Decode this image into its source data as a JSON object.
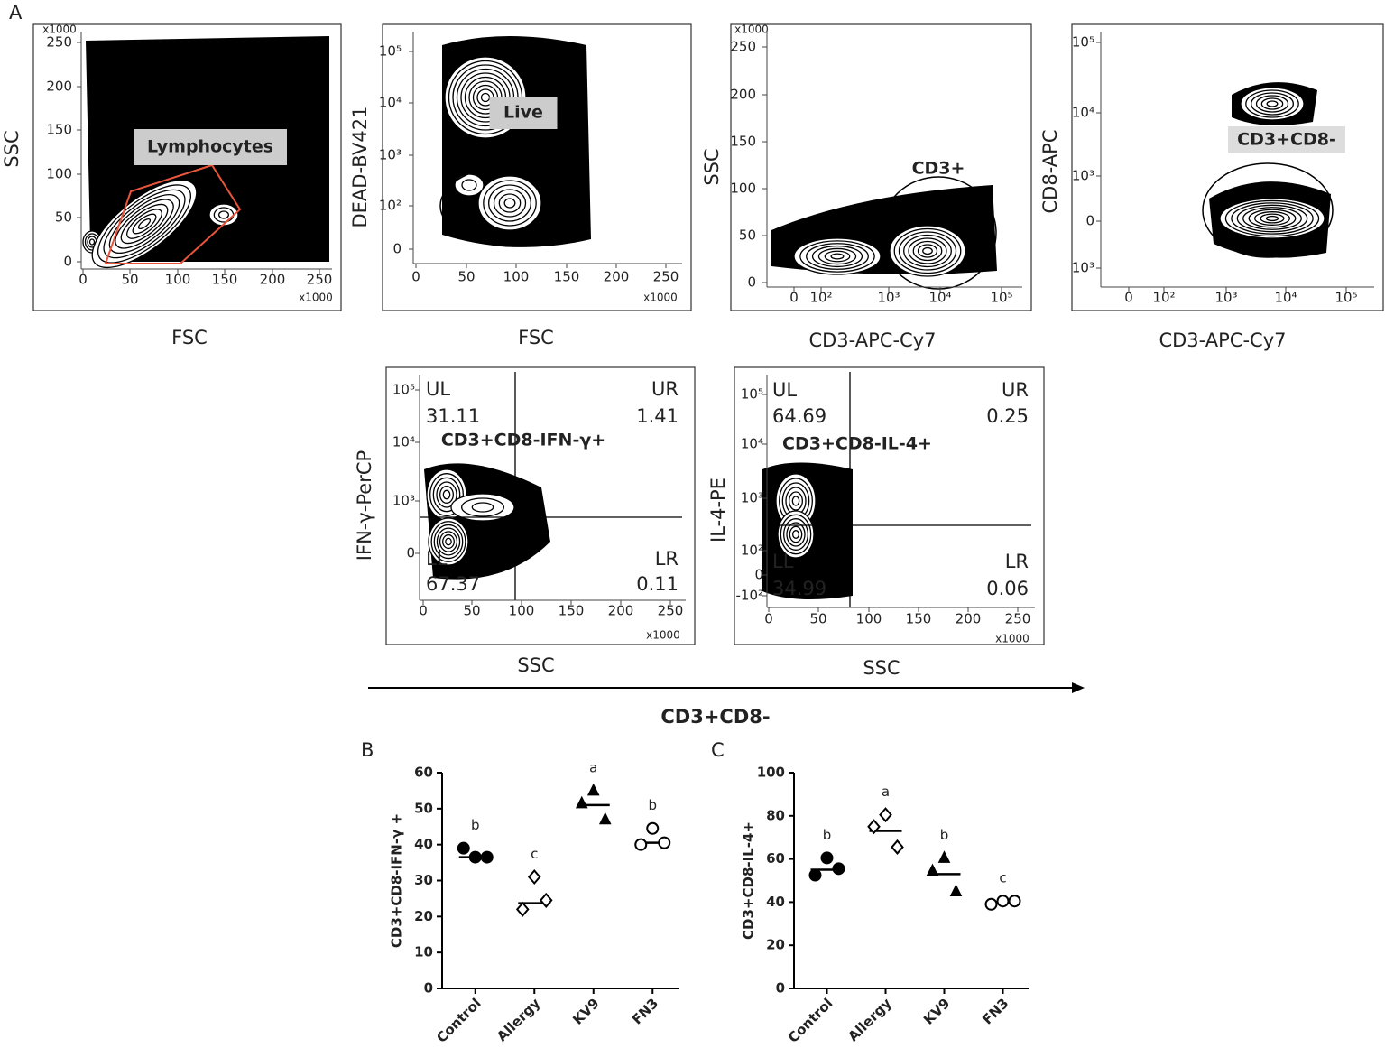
{
  "panel_labels": [
    "A",
    "B",
    "C"
  ],
  "flow_plots": [
    {
      "xlabel": "FSC",
      "ylabel": "SSC",
      "xticks": [
        "0",
        "50",
        "100",
        "150",
        "200",
        "250"
      ],
      "yticks": [
        "0",
        "50",
        "100",
        "150",
        "200",
        "250"
      ],
      "x_multiplier": "x1000",
      "y_multiplier": "x1000",
      "gate": "Lymphocytes"
    },
    {
      "xlabel": "FSC",
      "ylabel": "DEAD-BV421",
      "xticks": [
        "0",
        "50",
        "100",
        "150",
        "200",
        "250"
      ],
      "yticks": [
        "0",
        "10²",
        "10³",
        "10⁴",
        "10⁵"
      ],
      "x_multiplier": "x1000",
      "gate": "Live"
    },
    {
      "xlabel": "CD3-APC-Cy7",
      "ylabel": "SSC",
      "xticks": [
        "0",
        "10²",
        "10³",
        "10⁴",
        "10⁵"
      ],
      "yticks": [
        "0",
        "50",
        "100",
        "150",
        "200",
        "250"
      ],
      "y_multiplier": "x1000",
      "gate": "CD3+"
    },
    {
      "xlabel": "CD3-APC-Cy7",
      "ylabel": "CD8-APC",
      "xticks": [
        "0",
        "10²",
        "10³",
        "10⁴",
        "10⁵"
      ],
      "yticks": [
        "10³",
        "0",
        "10³",
        "10⁴",
        "10⁵"
      ],
      "gate": "CD3+CD8-"
    },
    {
      "xlabel": "SSC",
      "ylabel": "IFN-γ-PerCP",
      "xticks": [
        "0",
        "50",
        "100",
        "150",
        "200",
        "250"
      ],
      "yticks": [
        "0",
        "10³",
        "10⁴",
        "10⁵"
      ],
      "x_multiplier": "x1000",
      "gate": "CD3+CD8-IFN-γ+",
      "quadrants": [
        {
          "label": "UL",
          "value": 31.11
        },
        {
          "label": "UR",
          "value": 1.41
        },
        {
          "label": "LL",
          "value": 67.37
        },
        {
          "label": "LR",
          "value": 0.11
        }
      ]
    },
    {
      "xlabel": "SSC",
      "ylabel": "IL-4-PE",
      "xticks": [
        "0",
        "50",
        "100",
        "150",
        "200",
        "250"
      ],
      "yticks": [
        "-10²",
        "0",
        "10²",
        "10³",
        "10⁴",
        "10⁵"
      ],
      "x_multiplier": "x1000",
      "gate": "CD3+CD8-IL-4+",
      "quadrants": [
        {
          "label": "UL",
          "value": 64.69
        },
        {
          "label": "UR",
          "value": 0.25
        },
        {
          "label": "LL",
          "value": 34.99
        },
        {
          "label": "LR",
          "value": 0.06
        }
      ]
    }
  ],
  "group_label": "CD3+CD8-",
  "chart_data": [
    {
      "type": "dot",
      "ylabel": "CD3+CD8-IFN-γ +",
      "categories": [
        "Control",
        "Allergy",
        "KV9",
        "FN3"
      ],
      "values": [
        [
          36.5,
          39,
          36.5
        ],
        [
          31,
          22,
          24.5
        ],
        [
          55,
          51.5,
          47
        ],
        [
          44.5,
          40,
          40.5
        ]
      ],
      "lines": [
        36.5,
        23.7,
        51,
        40.5
      ],
      "letters": [
        "b",
        "c",
        "a",
        "b"
      ],
      "markers": [
        "circle-filled",
        "diamond-open",
        "triangle-filled",
        "circle-open"
      ],
      "color": "#000000",
      "ylim": [
        0,
        60
      ],
      "yticks": [
        0,
        10,
        20,
        30,
        40,
        50,
        60
      ]
    },
    {
      "type": "dot",
      "ylabel": "CD3+CD8-IL-4+",
      "categories": [
        "Control",
        "Allergy",
        "KV9",
        "FN3"
      ],
      "values": [
        [
          60.5,
          52.5,
          55.5
        ],
        [
          80.5,
          75,
          65.5
        ],
        [
          60.5,
          54.5,
          45
        ],
        [
          40.5,
          39,
          40.5
        ]
      ],
      "lines": [
        55,
        73,
        53,
        40
      ],
      "letters": [
        "b",
        "a",
        "b",
        "c"
      ],
      "markers": [
        "circle-filled",
        "diamond-open",
        "triangle-filled",
        "circle-open"
      ],
      "color": "#000000",
      "ylim": [
        0,
        100
      ],
      "yticks": [
        0,
        20,
        40,
        60,
        80,
        100
      ]
    }
  ]
}
